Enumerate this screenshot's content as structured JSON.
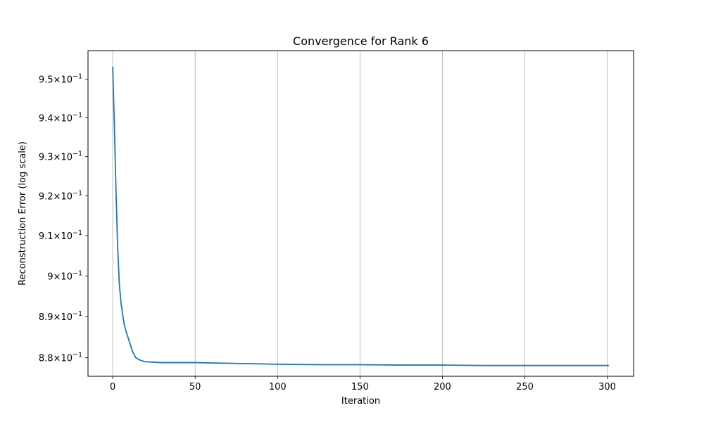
{
  "chart_data": {
    "type": "line",
    "title": "Convergence for Rank 6",
    "xlabel": "Iteration",
    "ylabel": "Reconstruction Error (log scale)",
    "yscale": "log",
    "grid": "x-major vertical lines",
    "xlim": [
      -15,
      316
    ],
    "ylim": [
      0.8755,
      0.9575
    ],
    "x_ticks": [
      0,
      50,
      100,
      150,
      200,
      250,
      300
    ],
    "x_tick_labels": [
      "0",
      "50",
      "100",
      "150",
      "200",
      "250",
      "300"
    ],
    "y_ticks": [
      0.88,
      0.89,
      0.9,
      0.91,
      0.92,
      0.93,
      0.94,
      0.95
    ],
    "y_tick_mantissas": [
      "8.8",
      "8.9",
      "9",
      "9.1",
      "9.2",
      "9.3",
      "9.4",
      "9.5"
    ],
    "y_tick_base": "10",
    "y_tick_exp": "−1",
    "series": [
      {
        "color": "#1f77b4",
        "x": [
          0,
          1,
          2,
          3,
          4,
          5,
          6,
          7,
          8,
          10,
          12,
          14,
          16,
          18,
          20,
          25,
          30,
          40,
          50,
          75,
          100,
          125,
          150,
          175,
          200,
          225,
          250,
          275,
          301
        ],
        "y": [
          0.9533,
          0.938,
          0.921,
          0.907,
          0.898,
          0.8935,
          0.8905,
          0.888,
          0.8865,
          0.884,
          0.8815,
          0.88,
          0.8795,
          0.8792,
          0.879,
          0.8789,
          0.8788,
          0.8788,
          0.8788,
          0.8786,
          0.8784,
          0.8783,
          0.8783,
          0.8782,
          0.8782,
          0.8781,
          0.8781,
          0.8781,
          0.8781
        ]
      }
    ]
  }
}
